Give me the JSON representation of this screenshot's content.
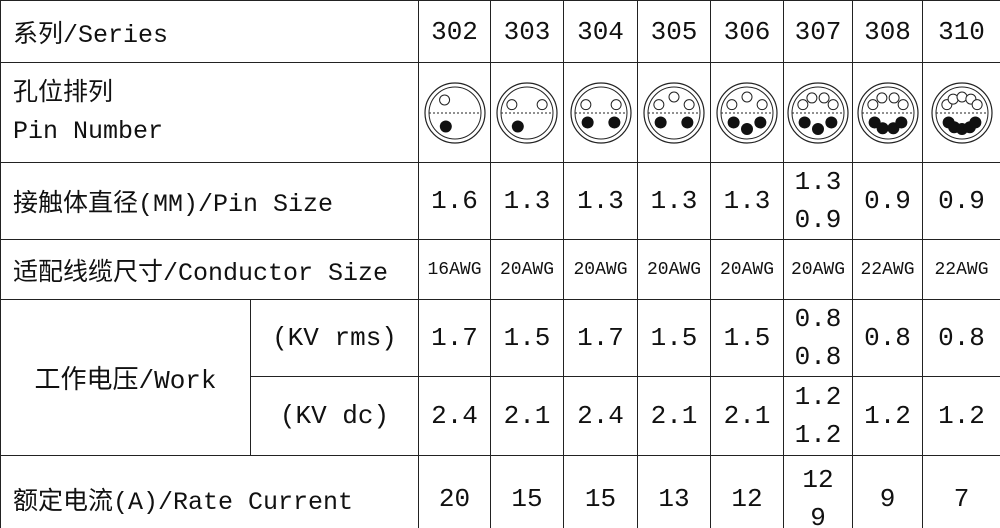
{
  "table": {
    "header": {
      "label": "系列/Series",
      "series": [
        "302",
        "303",
        "304",
        "305",
        "306",
        "307",
        "308",
        "310"
      ]
    },
    "pin_layout": {
      "label_cn": "孔位排列",
      "label_en": "Pin Number"
    },
    "pin_size": {
      "label": "接触体直径(MM)/Pin Size",
      "values": [
        "1.6",
        "1.3",
        "1.3",
        "1.3",
        "1.3",
        [
          "1.3",
          "0.9"
        ],
        "0.9",
        "0.9"
      ]
    },
    "conductor_size": {
      "label": "适配线缆尺寸/Conductor Size",
      "values": [
        "16AWG",
        "20AWG",
        "20AWG",
        "20AWG",
        "20AWG",
        "20AWG",
        "22AWG",
        "22AWG"
      ]
    },
    "work_voltage": {
      "label": "工作电压/Work",
      "rms": {
        "label": "(KV rms)",
        "values": [
          "1.7",
          "1.5",
          "1.7",
          "1.5",
          "1.5",
          [
            "0.8",
            "0.8"
          ],
          "0.8",
          "0.8"
        ]
      },
      "dc": {
        "label": "(KV dc)",
        "values": [
          "2.4",
          "2.1",
          "2.4",
          "2.1",
          "2.1",
          [
            "1.2",
            "1.2"
          ],
          "1.2",
          "1.2"
        ]
      }
    },
    "rate_current": {
      "label": "额定电流(A)/Rate Current",
      "values": [
        "20",
        "15",
        "15",
        "13",
        "12",
        [
          "12",
          "9"
        ],
        "9",
        "7"
      ]
    }
  }
}
